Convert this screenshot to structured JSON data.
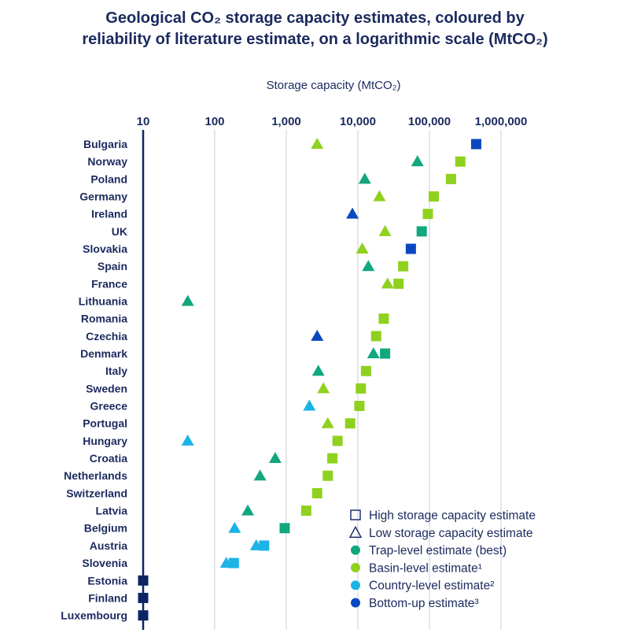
{
  "chart_data": {
    "type": "scatter",
    "title_line1": "Geological CO₂ storage capacity estimates, coloured by",
    "title_line2": "reliability of literature estimate, on a logarithmic scale (MtCO₂)",
    "xlabel": "Storage capacity (MtCO₂)",
    "xscale": "log",
    "xlim": [
      10,
      1000000
    ],
    "xticks": [
      10,
      100,
      1000,
      10000,
      100000,
      1000000
    ],
    "xtick_labels": [
      "10",
      "100",
      "1,000",
      "10,000",
      "100,000",
      "1,000,000"
    ],
    "grid": true,
    "legend_position": "bottom-right",
    "colors": {
      "trap": "#12a77e",
      "basin": "#8fd11f",
      "country": "#1cb3e6",
      "bottomup": "#0a48c0",
      "dark": "#0d2563"
    },
    "legend": [
      {
        "label": "High storage capacity estimate",
        "marker": "square-outline"
      },
      {
        "label": "Low storage capacity estimate",
        "marker": "triangle-outline"
      },
      {
        "label": "Trap-level estimate (best)",
        "marker": "circle",
        "level": "trap"
      },
      {
        "label": "Basin-level estimate¹",
        "marker": "circle",
        "level": "basin"
      },
      {
        "label": "Country-level estimate²",
        "marker": "circle",
        "level": "country"
      },
      {
        "label": "Bottom-up estimate³",
        "marker": "circle",
        "level": "bottomup"
      }
    ],
    "countries": [
      {
        "name": "Bulgaria",
        "high": {
          "value": 450000,
          "level": "bottomup"
        },
        "low": {
          "value": 2700,
          "level": "basin"
        }
      },
      {
        "name": "Norway",
        "high": {
          "value": 270000,
          "level": "basin"
        },
        "low": {
          "value": 68000,
          "level": "trap"
        }
      },
      {
        "name": "Poland",
        "high": {
          "value": 200000,
          "level": "basin"
        },
        "low": {
          "value": 12500,
          "level": "trap"
        }
      },
      {
        "name": "Germany",
        "high": {
          "value": 115000,
          "level": "basin"
        },
        "low": {
          "value": 20000,
          "level": "basin"
        }
      },
      {
        "name": "Ireland",
        "high": {
          "value": 95000,
          "level": "basin"
        },
        "low": {
          "value": 8400,
          "level": "bottomup"
        }
      },
      {
        "name": "UK",
        "high": {
          "value": 78000,
          "level": "trap"
        },
        "low": {
          "value": 24000,
          "level": "basin"
        }
      },
      {
        "name": "Slovakia",
        "high": {
          "value": 55000,
          "level": "bottomup"
        },
        "low": {
          "value": 11500,
          "level": "basin"
        }
      },
      {
        "name": "Spain",
        "high": {
          "value": 43000,
          "level": "basin"
        },
        "low": {
          "value": 14000,
          "level": "trap"
        }
      },
      {
        "name": "France",
        "high": {
          "value": 37000,
          "level": "basin"
        },
        "low": {
          "value": 26000,
          "level": "basin"
        }
      },
      {
        "name": "Lithuania",
        "low": {
          "value": 42,
          "level": "trap"
        }
      },
      {
        "name": "Romania",
        "high": {
          "value": 23000,
          "level": "basin"
        }
      },
      {
        "name": "Czechia",
        "high": {
          "value": 18000,
          "level": "basin"
        },
        "low": {
          "value": 2700,
          "level": "bottomup"
        }
      },
      {
        "name": "Denmark",
        "high": {
          "value": 24000,
          "level": "trap"
        },
        "low": {
          "value": 16500,
          "level": "trap"
        }
      },
      {
        "name": "Italy",
        "high": {
          "value": 13000,
          "level": "basin"
        },
        "low": {
          "value": 2800,
          "level": "trap"
        }
      },
      {
        "name": "Sweden",
        "high": {
          "value": 11000,
          "level": "basin"
        },
        "low": {
          "value": 3300,
          "level": "basin"
        }
      },
      {
        "name": "Greece",
        "high": {
          "value": 10500,
          "level": "basin"
        },
        "low": {
          "value": 2100,
          "level": "country"
        }
      },
      {
        "name": "Portugal",
        "high": {
          "value": 7800,
          "level": "basin"
        },
        "low": {
          "value": 3800,
          "level": "basin"
        }
      },
      {
        "name": "Hungary",
        "high": {
          "value": 5200,
          "level": "basin"
        },
        "low": {
          "value": 42,
          "level": "country"
        }
      },
      {
        "name": "Croatia",
        "high": {
          "value": 4400,
          "level": "basin"
        },
        "low": {
          "value": 700,
          "level": "trap"
        }
      },
      {
        "name": "Netherlands",
        "high": {
          "value": 3800,
          "level": "basin"
        },
        "low": {
          "value": 430,
          "level": "trap"
        }
      },
      {
        "name": "Switzerland",
        "high": {
          "value": 2700,
          "level": "basin"
        }
      },
      {
        "name": "Latvia",
        "high": {
          "value": 1900,
          "level": "basin"
        },
        "low": {
          "value": 290,
          "level": "trap"
        }
      },
      {
        "name": "Belgium",
        "high": {
          "value": 950,
          "level": "trap"
        },
        "low": {
          "value": 190,
          "level": "country"
        }
      },
      {
        "name": "Austria",
        "high": {
          "value": 490,
          "level": "country"
        },
        "low": {
          "value": 380,
          "level": "country"
        }
      },
      {
        "name": "Slovenia",
        "high": {
          "value": 185,
          "level": "country"
        },
        "low": {
          "value": 145,
          "level": "country"
        }
      },
      {
        "name": "Estonia",
        "high": {
          "value": 10,
          "level": "dark"
        }
      },
      {
        "name": "Finland",
        "high": {
          "value": 10,
          "level": "dark"
        }
      },
      {
        "name": "Luxembourg",
        "high": {
          "value": 10,
          "level": "dark"
        }
      }
    ]
  }
}
